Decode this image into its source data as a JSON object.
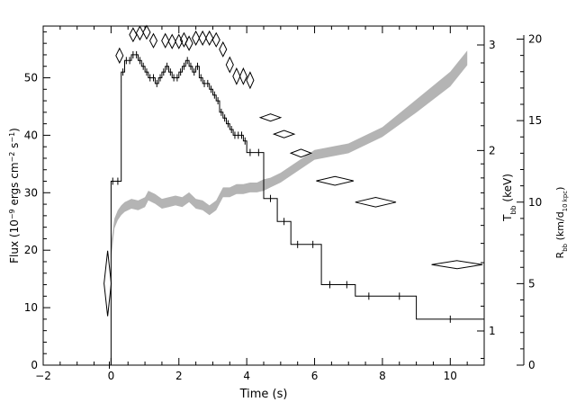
{
  "chart_data": {
    "type": "line",
    "xlabel": "Time (s)",
    "xlim": [
      -2,
      11
    ],
    "x_ticks": [
      "−2",
      "0",
      "2",
      "4",
      "6",
      "8",
      "10"
    ],
    "left_axis": {
      "label_parts": [
        "Flux (10",
        "−9",
        " ergs cm",
        "−2",
        " s",
        "−1",
        ")"
      ],
      "ylim": [
        0,
        59
      ],
      "ticks": [
        "0",
        "10",
        "20",
        "30",
        "40",
        "50"
      ]
    },
    "right_axis_T": {
      "label": "T",
      "label_sub": "bb",
      "label_unit": " (keV)",
      "scale": "log",
      "ticks": [
        "1",
        "2",
        "3"
      ]
    },
    "right_axis_R": {
      "label": "R",
      "label_sub": "bb",
      "label_unit_parts": [
        " (km/d",
        "10 kpc",
        ")"
      ],
      "ylim": [
        0,
        20.8
      ],
      "ticks": [
        "0",
        "5",
        "10",
        "15",
        "20"
      ]
    },
    "series": [
      {
        "kind": "flux-histogram",
        "style": "step",
        "color": "#000000",
        "x": [
          -0.1,
          0.0,
          0.1,
          0.3,
          0.4,
          0.5,
          0.6,
          0.7,
          0.8,
          0.9,
          1.0,
          1.1,
          1.2,
          1.3,
          1.4,
          1.5,
          1.6,
          1.7,
          1.8,
          1.9,
          2.0,
          2.1,
          2.2,
          2.3,
          2.4,
          2.5,
          2.6,
          2.7,
          2.8,
          2.9,
          3.0,
          3.1,
          3.2,
          3.3,
          3.4,
          3.5,
          3.6,
          3.7,
          3.8,
          3.9,
          4.0,
          4.2,
          4.5,
          4.9,
          5.3,
          5.7,
          6.2,
          6.7,
          7.2,
          8.0,
          9.0,
          11.0
        ],
        "y": [
          0,
          32,
          32,
          51,
          53,
          53,
          54,
          54,
          53,
          52,
          51,
          50,
          50,
          49,
          50,
          51,
          52,
          51,
          50,
          50,
          51,
          52,
          53,
          52,
          51,
          52,
          50,
          49,
          49,
          48,
          47,
          46,
          44,
          43,
          42,
          41,
          40,
          40,
          40,
          39,
          37,
          37,
          29,
          25,
          21,
          21,
          14,
          14,
          12,
          12,
          8
        ]
      },
      {
        "kind": "temperature-diamonds",
        "unit": "keV",
        "points": [
          {
            "x": -0.1,
            "y": 1.2,
            "dx": 0.08,
            "dy": 0.15
          },
          {
            "x": 0.25,
            "y": 2.88,
            "dx": 0.1,
            "dy": 0.08
          },
          {
            "x": 0.65,
            "y": 3.12,
            "dx": 0.1,
            "dy": 0.08
          },
          {
            "x": 0.85,
            "y": 3.14,
            "dx": 0.1,
            "dy": 0.08
          },
          {
            "x": 1.05,
            "y": 3.15,
            "dx": 0.1,
            "dy": 0.08
          },
          {
            "x": 1.25,
            "y": 3.05,
            "dx": 0.1,
            "dy": 0.08
          },
          {
            "x": 1.6,
            "y": 3.05,
            "dx": 0.1,
            "dy": 0.08
          },
          {
            "x": 1.8,
            "y": 3.04,
            "dx": 0.1,
            "dy": 0.08
          },
          {
            "x": 2.0,
            "y": 3.04,
            "dx": 0.1,
            "dy": 0.08
          },
          {
            "x": 2.15,
            "y": 3.06,
            "dx": 0.1,
            "dy": 0.08
          },
          {
            "x": 2.3,
            "y": 3.02,
            "dx": 0.1,
            "dy": 0.08
          },
          {
            "x": 2.5,
            "y": 3.08,
            "dx": 0.1,
            "dy": 0.08
          },
          {
            "x": 2.7,
            "y": 3.08,
            "dx": 0.1,
            "dy": 0.08
          },
          {
            "x": 2.9,
            "y": 3.08,
            "dx": 0.1,
            "dy": 0.08
          },
          {
            "x": 3.1,
            "y": 3.06,
            "dx": 0.1,
            "dy": 0.08
          },
          {
            "x": 3.3,
            "y": 2.95,
            "dx": 0.1,
            "dy": 0.08
          },
          {
            "x": 3.5,
            "y": 2.78,
            "dx": 0.1,
            "dy": 0.08
          },
          {
            "x": 3.7,
            "y": 2.66,
            "dx": 0.1,
            "dy": 0.08
          },
          {
            "x": 3.9,
            "y": 2.66,
            "dx": 0.1,
            "dy": 0.08
          },
          {
            "x": 4.1,
            "y": 2.62,
            "dx": 0.1,
            "dy": 0.08
          },
          {
            "x": 4.7,
            "y": 2.27,
            "dx": 0.3,
            "dy": 0.03
          },
          {
            "x": 5.1,
            "y": 2.13,
            "dx": 0.3,
            "dy": 0.03
          },
          {
            "x": 5.6,
            "y": 1.98,
            "dx": 0.3,
            "dy": 0.03
          },
          {
            "x": 6.6,
            "y": 1.78,
            "dx": 0.55,
            "dy": 0.03
          },
          {
            "x": 7.8,
            "y": 1.64,
            "dx": 0.6,
            "dy": 0.03
          },
          {
            "x": 10.2,
            "y": 1.29,
            "dx": 0.75,
            "dy": 0.02
          }
        ]
      },
      {
        "kind": "radius-band",
        "style": "shaded-band",
        "color": "#b4b4b4",
        "x": [
          0.0,
          0.1,
          0.2,
          0.3,
          0.4,
          0.6,
          0.8,
          1.0,
          1.1,
          1.3,
          1.5,
          1.7,
          1.9,
          2.1,
          2.3,
          2.5,
          2.7,
          2.9,
          3.1,
          3.3,
          3.5,
          3.7,
          3.9,
          4.1,
          4.3,
          4.5,
          4.7,
          5.0,
          5.5,
          6.0,
          7.0,
          8.0,
          9.0,
          10.0,
          10.5
        ],
        "lower": [
          6.5,
          8.4,
          8.9,
          9.2,
          9.4,
          9.6,
          9.5,
          9.7,
          10.1,
          9.9,
          9.6,
          9.7,
          9.8,
          9.7,
          10.0,
          9.6,
          9.5,
          9.2,
          9.5,
          10.3,
          10.3,
          10.5,
          10.5,
          10.6,
          10.6,
          10.7,
          10.9,
          11.2,
          11.9,
          12.6,
          13.0,
          14.0,
          15.5,
          17.1,
          18.4
        ],
        "upper": [
          7.5,
          9.0,
          9.5,
          9.8,
          10.0,
          10.2,
          10.1,
          10.3,
          10.7,
          10.5,
          10.2,
          10.3,
          10.4,
          10.3,
          10.6,
          10.2,
          10.1,
          9.8,
          10.1,
          10.9,
          10.9,
          11.1,
          11.1,
          11.2,
          11.2,
          11.4,
          11.5,
          11.8,
          12.5,
          13.2,
          13.6,
          14.6,
          16.3,
          18.0,
          19.3
        ]
      }
    ]
  }
}
